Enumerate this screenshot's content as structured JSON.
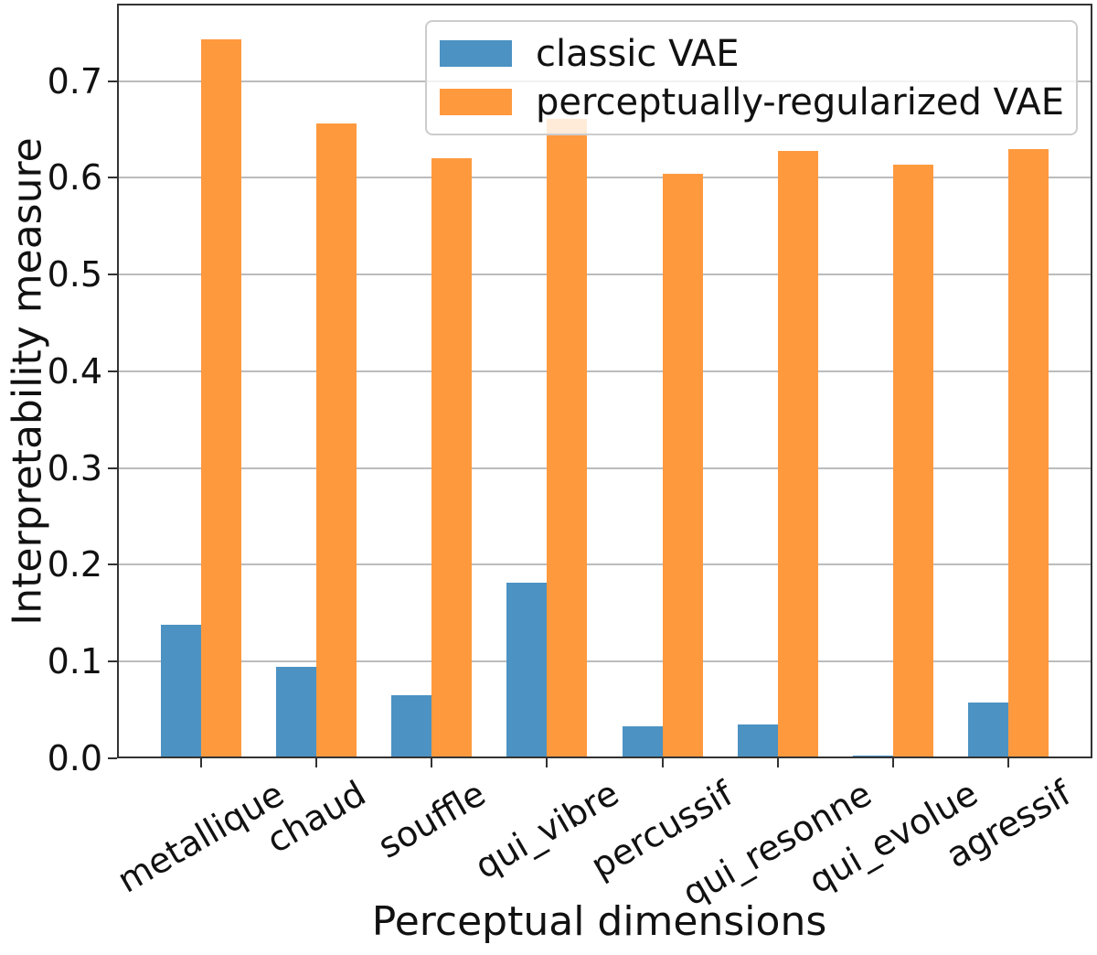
{
  "chart_data": {
    "type": "bar",
    "title": "",
    "xlabel": "Perceptual dimensions",
    "ylabel": "Interpretability measure",
    "categories": [
      "metallique",
      "chaud",
      "souffle",
      "qui_vibre",
      "percussif",
      "qui_resonne",
      "qui_evolue",
      "agressif"
    ],
    "series": [
      {
        "name": "classic VAE",
        "color": "#4c92c3",
        "values": [
          0.138,
          0.095,
          0.065,
          0.182,
          0.033,
          0.035,
          0.003,
          0.058
        ]
      },
      {
        "name": "perceptually-regularized VAE",
        "color": "#ff993e",
        "values": [
          0.743,
          0.656,
          0.62,
          0.661,
          0.604,
          0.628,
          0.614,
          0.63
        ]
      }
    ],
    "ytick_labels": [
      "0.0",
      "0.1",
      "0.2",
      "0.3",
      "0.4",
      "0.5",
      "0.6",
      "0.7"
    ],
    "yticks": [
      0.0,
      0.1,
      0.2,
      0.3,
      0.4,
      0.5,
      0.6,
      0.7
    ],
    "ylim": [
      0,
      0.78
    ],
    "grid": "horizontal",
    "legend_position": "upper-right-inside",
    "xtick_label_rotation_deg": 30
  },
  "colors": {
    "grid": "#bcbcbc",
    "spine": "#333333",
    "text": "#111111",
    "legend_border": "#cccccc",
    "background": "#ffffff"
  }
}
